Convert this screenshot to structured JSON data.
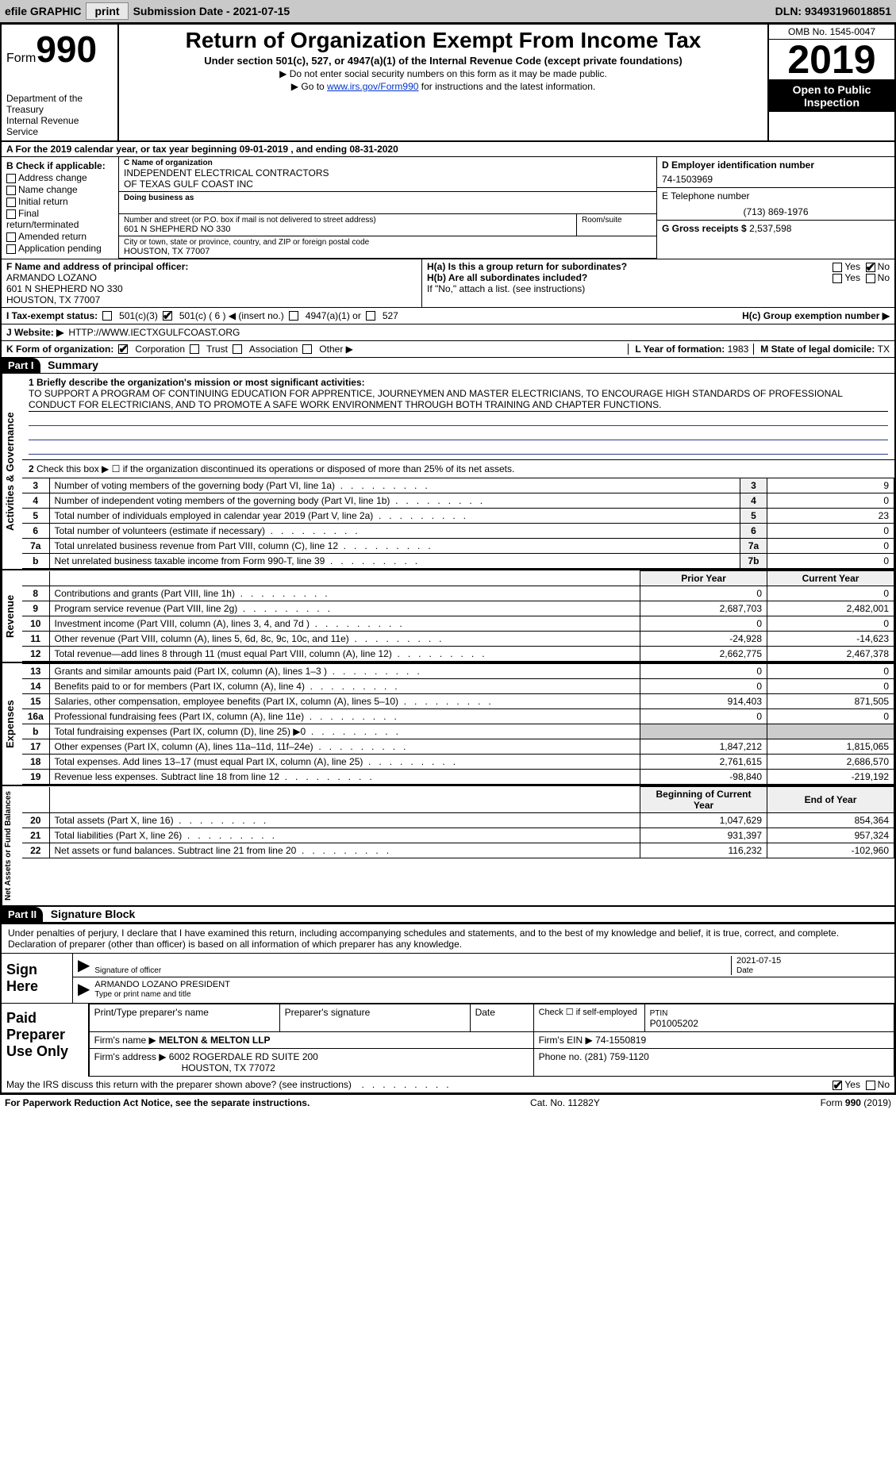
{
  "topbar": {
    "efile": "efile GRAPHIC",
    "print": "print",
    "submission_label": "Submission Date - ",
    "submission_date": "2021-07-15",
    "dln_label": "DLN: ",
    "dln": "93493196018851"
  },
  "header": {
    "form_word": "Form",
    "form_num": "990",
    "dept1": "Department of the Treasury",
    "dept2": "Internal Revenue Service",
    "title": "Return of Organization Exempt From Income Tax",
    "sub1": "Under section 501(c), 527, or 4947(a)(1) of the Internal Revenue Code (except private foundations)",
    "sub2": "▶ Do not enter social security numbers on this form as it may be made public.",
    "sub3_pre": "▶ Go to ",
    "sub3_link": "www.irs.gov/Form990",
    "sub3_post": " for instructions and the latest information.",
    "omb": "OMB No. 1545-0047",
    "year": "2019",
    "open": "Open to Public Inspection"
  },
  "rowA": "A For the 2019 calendar year, or tax year beginning 09-01-2019   , and ending 08-31-2020",
  "colB": {
    "heading": "B Check if applicable:",
    "opts": [
      "Address change",
      "Name change",
      "Initial return",
      "Final return/terminated",
      "Amended return",
      "Application pending"
    ]
  },
  "org": {
    "c_label": "C Name of organization",
    "name1": "INDEPENDENT ELECTRICAL CONTRACTORS",
    "name2": "OF TEXAS GULF COAST INC",
    "dba_label": "Doing business as",
    "addr_label": "Number and street (or P.O. box if mail is not delivered to street address)",
    "room_label": "Room/suite",
    "addr": "601 N SHEPHERD NO 330",
    "city_label": "City or town, state or province, country, and ZIP or foreign postal code",
    "city": "HOUSTON, TX  77007"
  },
  "right": {
    "d_label": "D Employer identification number",
    "ein": "74-1503969",
    "e_label": "E Telephone number",
    "phone": "(713) 869-1976",
    "g_label": "G Gross receipts $ ",
    "gross": "2,537,598"
  },
  "f": {
    "label": "F  Name and address of principal officer:",
    "name": "ARMANDO LOZANO",
    "addr1": "601 N SHEPHERD NO 330",
    "addr2": "HOUSTON, TX  77007"
  },
  "h": {
    "ha": "H(a)  Is this a group return for subordinates?",
    "hb": "H(b)  Are all subordinates included?",
    "hb_note": "If \"No,\" attach a list. (see instructions)",
    "hc": "H(c)  Group exemption number ▶",
    "yes": "Yes",
    "no": "No"
  },
  "i": {
    "label": "I   Tax-exempt status:",
    "o1": "501(c)(3)",
    "o2": "501(c) ( 6 ) ◀ (insert no.)",
    "o3": "4947(a)(1) or",
    "o4": "527"
  },
  "j": {
    "label": "J   Website: ▶",
    "url": "HTTP://WWW.IECTXGULFCOAST.ORG"
  },
  "k": {
    "label": "K Form of organization:",
    "o1": "Corporation",
    "o2": "Trust",
    "o3": "Association",
    "o4": "Other ▶"
  },
  "l": {
    "label": "L Year of formation: ",
    "val": "1983"
  },
  "m": {
    "label": "M State of legal domicile: ",
    "val": "TX"
  },
  "parts": {
    "p1": "Part I",
    "p1t": "Summary",
    "p2": "Part II",
    "p2t": "Signature Block"
  },
  "mission": {
    "q": "1  Briefly describe the organization's mission or most significant activities:",
    "text": "TO SUPPORT A PROGRAM OF CONTINUING EDUCATION FOR APPRENTICE, JOURNEYMEN AND MASTER ELECTRICIANS, TO ENCOURAGE HIGH STANDARDS OF PROFESSIONAL CONDUCT FOR ELECTRICIANS, AND TO PROMOTE A SAFE WORK ENVIRONMENT THROUGH BOTH TRAINING AND CHAPTER FUNCTIONS."
  },
  "gov": {
    "l2": "Check this box ▶ ☐ if the organization discontinued its operations or disposed of more than 25% of its net assets.",
    "rows": [
      {
        "n": "3",
        "d": "Number of voting members of the governing body (Part VI, line 1a)",
        "rn": "3",
        "v": "9"
      },
      {
        "n": "4",
        "d": "Number of independent voting members of the governing body (Part VI, line 1b)",
        "rn": "4",
        "v": "0"
      },
      {
        "n": "5",
        "d": "Total number of individuals employed in calendar year 2019 (Part V, line 2a)",
        "rn": "5",
        "v": "23"
      },
      {
        "n": "6",
        "d": "Total number of volunteers (estimate if necessary)",
        "rn": "6",
        "v": "0"
      },
      {
        "n": "7a",
        "d": "Total unrelated business revenue from Part VIII, column (C), line 12",
        "rn": "7a",
        "v": "0"
      },
      {
        "n": "b",
        "d": "Net unrelated business taxable income from Form 990-T, line 39",
        "rn": "7b",
        "v": "0"
      }
    ]
  },
  "fin_hdr": {
    "prior": "Prior Year",
    "current": "Current Year"
  },
  "revenue": [
    {
      "n": "8",
      "d": "Contributions and grants (Part VIII, line 1h)",
      "p": "0",
      "c": "0"
    },
    {
      "n": "9",
      "d": "Program service revenue (Part VIII, line 2g)",
      "p": "2,687,703",
      "c": "2,482,001"
    },
    {
      "n": "10",
      "d": "Investment income (Part VIII, column (A), lines 3, 4, and 7d )",
      "p": "0",
      "c": "0"
    },
    {
      "n": "11",
      "d": "Other revenue (Part VIII, column (A), lines 5, 6d, 8c, 9c, 10c, and 11e)",
      "p": "-24,928",
      "c": "-14,623"
    },
    {
      "n": "12",
      "d": "Total revenue—add lines 8 through 11 (must equal Part VIII, column (A), line 12)",
      "p": "2,662,775",
      "c": "2,467,378"
    }
  ],
  "expenses": [
    {
      "n": "13",
      "d": "Grants and similar amounts paid (Part IX, column (A), lines 1–3 )",
      "p": "0",
      "c": "0"
    },
    {
      "n": "14",
      "d": "Benefits paid to or for members (Part IX, column (A), line 4)",
      "p": "0",
      "c": "0"
    },
    {
      "n": "15",
      "d": "Salaries, other compensation, employee benefits (Part IX, column (A), lines 5–10)",
      "p": "914,403",
      "c": "871,505"
    },
    {
      "n": "16a",
      "d": "Professional fundraising fees (Part IX, column (A), line 11e)",
      "p": "0",
      "c": "0"
    },
    {
      "n": "b",
      "d": "Total fundraising expenses (Part IX, column (D), line 25) ▶0",
      "p": "",
      "c": ""
    },
    {
      "n": "17",
      "d": "Other expenses (Part IX, column (A), lines 11a–11d, 11f–24e)",
      "p": "1,847,212",
      "c": "1,815,065"
    },
    {
      "n": "18",
      "d": "Total expenses. Add lines 13–17 (must equal Part IX, column (A), line 25)",
      "p": "2,761,615",
      "c": "2,686,570"
    },
    {
      "n": "19",
      "d": "Revenue less expenses. Subtract line 18 from line 12",
      "p": "-98,840",
      "c": "-219,192"
    }
  ],
  "net_hdr": {
    "begin": "Beginning of Current Year",
    "end": "End of Year"
  },
  "net": [
    {
      "n": "20",
      "d": "Total assets (Part X, line 16)",
      "p": "1,047,629",
      "c": "854,364"
    },
    {
      "n": "21",
      "d": "Total liabilities (Part X, line 26)",
      "p": "931,397",
      "c": "957,324"
    },
    {
      "n": "22",
      "d": "Net assets or fund balances. Subtract line 21 from line 20",
      "p": "116,232",
      "c": "-102,960"
    }
  ],
  "sidelabels": {
    "gov": "Activities & Governance",
    "rev": "Revenue",
    "exp": "Expenses",
    "net": "Net Assets or Fund Balances"
  },
  "sig": {
    "decl": "Under penalties of perjury, I declare that I have examined this return, including accompanying schedules and statements, and to the best of my knowledge and belief, it is true, correct, and complete. Declaration of preparer (other than officer) is based on all information of which preparer has any knowledge.",
    "sign_here": "Sign Here",
    "sig_of_officer": "Signature of officer",
    "date": "Date",
    "sig_date": "2021-07-15",
    "name_title": "ARMANDO LOZANO  PRESIDENT",
    "type_name": "Type or print name and title"
  },
  "prep": {
    "label": "Paid Preparer Use Only",
    "h1": "Print/Type preparer's name",
    "h2": "Preparer's signature",
    "h3": "Date",
    "h4_pre": "Check ☐ if self-employed",
    "h5": "PTIN",
    "ptin": "P01005202",
    "firm_label": "Firm's name   ▶ ",
    "firm": "MELTON & MELTON LLP",
    "ein_label": "Firm's EIN ▶ ",
    "ein": "74-1550819",
    "addr_label": "Firm's address ▶ ",
    "addr1": "6002 ROGERDALE RD SUITE 200",
    "addr2": "HOUSTON, TX  77072",
    "phone_label": "Phone no. ",
    "phone": "(281) 759-1120"
  },
  "discuss": {
    "q": "May the IRS discuss this return with the preparer shown above? (see instructions)",
    "yes": "Yes",
    "no": "No"
  },
  "footer": {
    "left": "For Paperwork Reduction Act Notice, see the separate instructions.",
    "mid": "Cat. No. 11282Y",
    "right": "Form 990 (2019)"
  },
  "colors": {
    "topbar_bg": "#c9c9c9",
    "link": "#0033cc"
  }
}
